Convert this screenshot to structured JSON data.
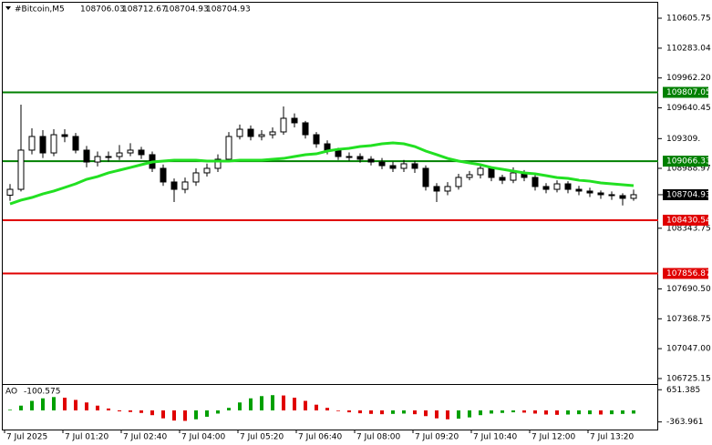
{
  "chart_data": {
    "type": "candlestick",
    "header": {
      "symbol": "#Bitcoin,M5",
      "ohlc": [
        108706.03,
        108712.67,
        108704.93,
        108704.93
      ]
    },
    "x": [
      0,
      15,
      30,
      45,
      60,
      75,
      90,
      105,
      120,
      135,
      150,
      165,
      180,
      195,
      210,
      225,
      240,
      255,
      270,
      285,
      300,
      315,
      330,
      345,
      360,
      375,
      390,
      405,
      420,
      435,
      450,
      465,
      480,
      495,
      510,
      525,
      540,
      555,
      570,
      585,
      600,
      615,
      630,
      645,
      660,
      675,
      690,
      705,
      720,
      735,
      750,
      765,
      780,
      795,
      810,
      825,
      840,
      855
    ],
    "xlim": [
      -6.25,
      896.25
    ],
    "xticks": [
      {
        "value": 0,
        "label": "7 Jul 2025"
      },
      {
        "value": 80,
        "label": "7 Jul 01:20"
      },
      {
        "value": 160,
        "label": "7 Jul 02:40"
      },
      {
        "value": 240,
        "label": "7 Jul 04:00"
      },
      {
        "value": 320,
        "label": "7 Jul 05:20"
      },
      {
        "value": 400,
        "label": "7 Jul 06:40"
      },
      {
        "value": 480,
        "label": "7 Jul 08:00"
      },
      {
        "value": 560,
        "label": "7 Jul 09:20"
      },
      {
        "value": 640,
        "label": "7 Jul 10:40"
      },
      {
        "value": 720,
        "label": "7 Jul 12:00"
      },
      {
        "value": 800,
        "label": "7 Jul 13:20"
      }
    ],
    "open": [
      108700,
      108763,
      109185,
      109332,
      109155,
      109351,
      109332,
      109185,
      109057,
      109116,
      109116,
      109155,
      109185,
      109136,
      108989,
      108842,
      108763,
      108842,
      108940,
      108989,
      109087,
      109332,
      109410,
      109332,
      109351,
      109381,
      109528,
      109479,
      109351,
      109253,
      109185,
      109116,
      109116,
      109087,
      109057,
      109018,
      108989,
      109038,
      108989,
      108793,
      108744,
      108793,
      108891,
      108920,
      108989,
      108891,
      108861,
      108940,
      108891,
      108793,
      108763,
      108822,
      108763,
      108744,
      108724,
      108705,
      108695,
      108666
    ],
    "high": [
      108820,
      109675,
      109420,
      109400,
      109410,
      109410,
      109370,
      109230,
      109170,
      109170,
      109240,
      109260,
      109220,
      109170,
      109030,
      108880,
      108890,
      108990,
      109040,
      109140,
      109380,
      109460,
      109450,
      109400,
      109430,
      109655,
      109580,
      109500,
      109380,
      109290,
      109210,
      109160,
      109150,
      109120,
      109100,
      109060,
      109080,
      109070,
      109020,
      108830,
      108840,
      108930,
      108960,
      109040,
      109010,
      108920,
      109000,
      108970,
      108920,
      108830,
      108860,
      108850,
      108800,
      108780,
      108750,
      108740,
      108720,
      108760
    ],
    "low": [
      108640,
      108740,
      109140,
      109100,
      109120,
      109270,
      109150,
      109000,
      109010,
      109060,
      109080,
      109120,
      109090,
      108950,
      108800,
      108626,
      108720,
      108800,
      108900,
      108950,
      109060,
      109300,
      109290,
      109290,
      109310,
      109350,
      109430,
      109310,
      109210,
      109140,
      109080,
      109070,
      109050,
      109020,
      108980,
      108950,
      108950,
      108940,
      108750,
      108626,
      108700,
      108760,
      108860,
      108880,
      108850,
      108820,
      108830,
      108850,
      108750,
      108720,
      108730,
      108720,
      108700,
      108680,
      108660,
      108650,
      108590,
      108640
    ],
    "close": [
      108763,
      109185,
      109332,
      109155,
      109351,
      109332,
      109185,
      109057,
      109116,
      109116,
      109155,
      109185,
      109136,
      108989,
      108842,
      108763,
      108842,
      108940,
      108989,
      109087,
      109332,
      109410,
      109332,
      109351,
      109381,
      109528,
      109479,
      109351,
      109253,
      109185,
      109116,
      109116,
      109087,
      109057,
      109018,
      108989,
      109038,
      108989,
      108793,
      108744,
      108793,
      108891,
      108920,
      108989,
      108891,
      108861,
      108940,
      108891,
      108793,
      108763,
      108822,
      108763,
      108744,
      108724,
      108705,
      108695,
      108666,
      108704.93
    ],
    "candle_color": "#000000",
    "ma": {
      "color": "#22e022",
      "values": [
        108606,
        108646,
        108675,
        108714,
        108744,
        108783,
        108822,
        108871,
        108900,
        108940,
        108969,
        108998,
        109028,
        109057,
        109067,
        109077,
        109077,
        109077,
        109067,
        109067,
        109067,
        109077,
        109077,
        109077,
        109087,
        109096,
        109116,
        109136,
        109145,
        109175,
        109194,
        109204,
        109224,
        109234,
        109253,
        109263,
        109253,
        109224,
        109175,
        109136,
        109096,
        109067,
        109047,
        109028,
        108998,
        108979,
        108959,
        108940,
        108930,
        108910,
        108890,
        108881,
        108861,
        108851,
        108832,
        108822,
        108812,
        108802
      ]
    },
    "ylim": [
      106666.15,
      110801.75
    ],
    "yticks": [
      110605.75,
      110283.04,
      {
        "value": 109962.2,
        "label": "109962.20"
      },
      109640.45,
      {
        "value": 109309,
        "label": "109309."
      },
      108988.97,
      108343.75,
      {
        "value": 107690.5,
        "label": "107690.50"
      },
      107368.75,
      {
        "value": 107047,
        "label": "107047.00"
      },
      106725.15
    ],
    "levels": [
      {
        "value": 109807.05,
        "color": "#008000"
      },
      {
        "value": 109066.33,
        "color": "#008000"
      },
      {
        "value": 108430.54,
        "color": "#e00000"
      },
      {
        "value": 107856.87,
        "color": "#e00000"
      }
    ],
    "current_price": 108704.93,
    "ao": {
      "name": "AO",
      "up_color": "#00a000",
      "down_color": "#e00000",
      "values": [
        20,
        150,
        300,
        380,
        420,
        400,
        330,
        250,
        150,
        60,
        -30,
        -50,
        -80,
        -150,
        -250,
        -320,
        -330,
        -280,
        -200,
        -100,
        80,
        250,
        380,
        450,
        480,
        470,
        400,
        300,
        180,
        80,
        -20,
        -60,
        -90,
        -110,
        -120,
        -110,
        -100,
        -120,
        -180,
        -250,
        -280,
        -260,
        -220,
        -150,
        -100,
        -80,
        -60,
        -70,
        -100,
        -130,
        -140,
        -130,
        -120,
        -120,
        -130,
        -120,
        -110,
        -100.575
      ],
      "ylim": [
        -603,
        831
      ],
      "yticks": [
        651.385,
        -363.961
      ]
    }
  }
}
